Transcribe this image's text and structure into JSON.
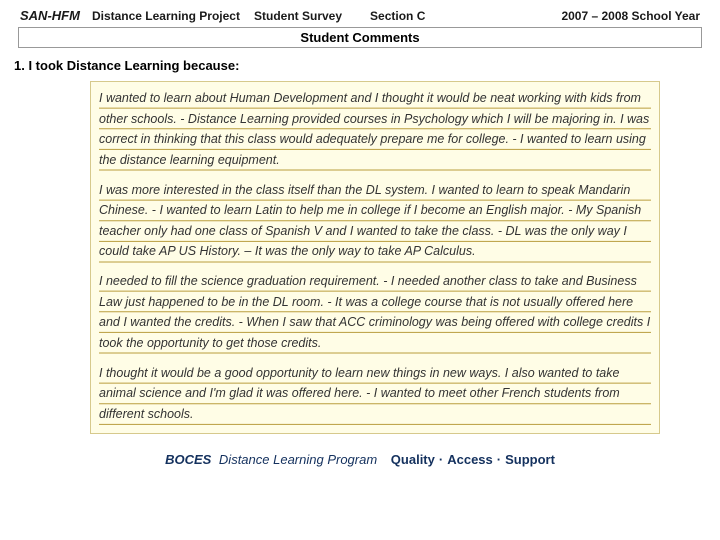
{
  "header": {
    "org_code": "SAN-HFM",
    "project": "Distance Learning Project",
    "survey": "Student Survey",
    "section": "Section C",
    "year": "2007 – 2008 School Year"
  },
  "comments_title": "Student Comments",
  "question": "1. I took Distance Learning because:",
  "paragraphs": [
    "I wanted to learn about Human Development and I thought it would be neat working with kids from other schools. - Distance Learning provided courses in Psychology which I will be majoring in. I was correct in thinking that this class would adequately prepare me for college. - I wanted to learn using the distance learning equipment.",
    "I was more interested in the class itself than the DL system.  I wanted to learn to speak Mandarin Chinese. - I wanted to learn Latin to help me in college if I become an English major. - My Spanish teacher only had one class of Spanish V and I wanted to take the class. - DL was the only way I could take AP US History. – It was the only way to take AP Calculus.",
    "I needed to fill the science graduation requirement. -  I needed another class to take and Business Law just happened to be in the DL room. - It was a college course that is not usually offered here and I wanted the credits. - When I saw that ACC criminology was being offered with college credits I took the opportunity to get those credits.",
    "I thought it would be a good opportunity to learn new things in new ways.  I also wanted to take animal science and I'm glad it was offered here. - I wanted to meet other French students from different schools."
  ],
  "footer": {
    "boces": "BOCES",
    "program": "Distance Learning Program",
    "tag1": "Quality",
    "tag2": "Access",
    "tag3": "Support"
  }
}
